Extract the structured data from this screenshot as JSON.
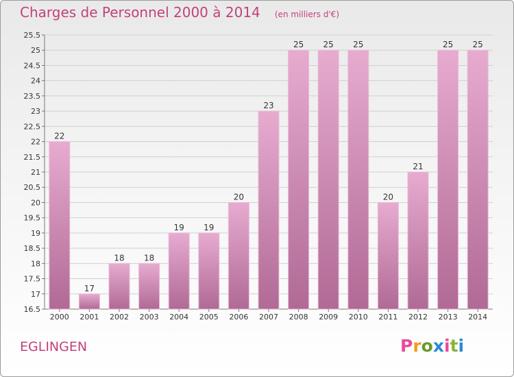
{
  "header": {
    "title": "Charges de Personnel 2000 à 2014",
    "subtitle": "(en milliers d'€)"
  },
  "footer": {
    "city": "EGLINGEN",
    "logo_text": "Proxiti"
  },
  "colors": {
    "title": "#c2417a",
    "bar_top": "#e7abd0",
    "bar_bottom": "#b06a95",
    "logo_letters": [
      "#e84c9a",
      "#f39a1f",
      "#6a9a2a",
      "#2a8ad6",
      "#e84c9a",
      "#8ab33a",
      "#2a8ad6"
    ]
  },
  "chart_data": {
    "type": "bar",
    "title": "Charges de Personnel 2000 à 2014",
    "subtitle": "(en milliers d'€)",
    "categories": [
      "2000",
      "2001",
      "2002",
      "2003",
      "2004",
      "2005",
      "2006",
      "2007",
      "2008",
      "2009",
      "2010",
      "2011",
      "2012",
      "2013",
      "2014"
    ],
    "values": [
      22,
      17,
      18,
      18,
      19,
      19,
      20,
      23,
      25,
      25,
      25,
      20,
      21,
      25,
      25
    ],
    "ylim": [
      16.5,
      25.5
    ],
    "yticks": [
      "16.5",
      "17",
      "17.5",
      "18",
      "18.5",
      "19",
      "19.5",
      "20",
      "20.5",
      "21",
      "21.5",
      "22",
      "22.5",
      "23",
      "23.5",
      "24",
      "24.5",
      "25",
      "25.5"
    ],
    "grid": true,
    "legend": "none"
  }
}
